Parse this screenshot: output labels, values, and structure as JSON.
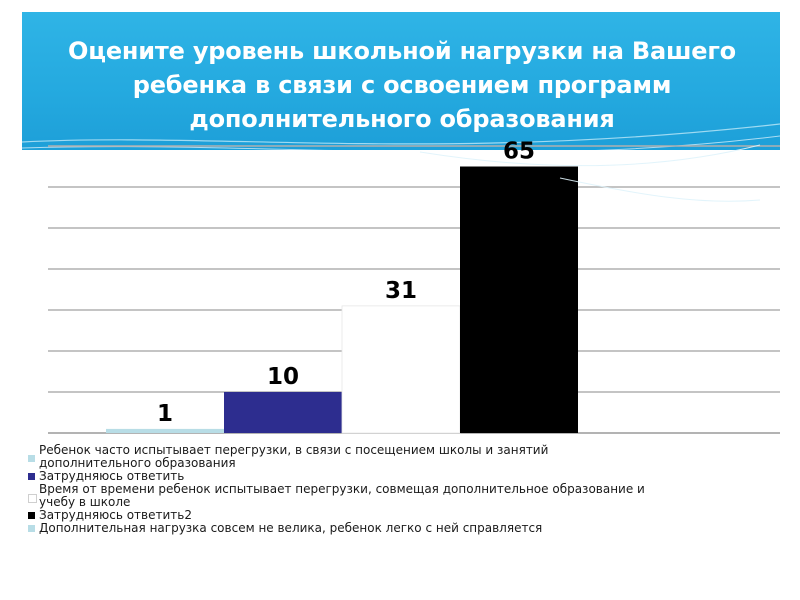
{
  "header": {
    "title_lines": [
      "Оцените уровень школьной нагрузки на Вашего",
      "ребенка в связи с освоением программ",
      "дополнительного образования"
    ],
    "background": "#26abe0"
  },
  "chart_data": {
    "type": "bar",
    "title": "Оцените уровень школьной нагрузки на Вашего ребенка в связи с освоением программ дополнительного образования",
    "ylim": [
      0,
      70
    ],
    "grid": true,
    "legend_position": "bottom",
    "series": [
      {
        "name": "Ребенок часто испытывает перегрузки, в связи с посещением школы и занятий дополнительного образования",
        "value": 1,
        "label": "1",
        "color": "#b8dde6"
      },
      {
        "name": "Затрудняюсь ответить",
        "value": 10,
        "label": "10",
        "color": "#2d2d8f"
      },
      {
        "name": "Время от времени ребенок испытывает перегрузки, совмещая дополнительное образование и учебу в школе",
        "value": 31,
        "label": "31",
        "color": "#ffffff"
      },
      {
        "name": "Затрудняюсь ответить2",
        "value": 65,
        "label": "65",
        "color": "#000000"
      },
      {
        "name": "Дополнительная нагрузка совсем не велика, ребенок легко с ней справляется",
        "value": null,
        "label": "",
        "color": "#b8dde6"
      }
    ]
  },
  "legend": {
    "items": [
      {
        "lines": [
          "Ребенок часто испытывает перегрузки, в связи с посещением школы и занятий",
          "дополнительного образования"
        ]
      },
      {
        "lines": [
          "Затрудняюсь ответить"
        ]
      },
      {
        "lines": [
          "Время от времени ребенок испытывает перегрузки, совмещая дополнительное образование и",
          "учебу в школе"
        ]
      },
      {
        "lines": [
          "Затрудняюсь ответить2"
        ]
      },
      {
        "lines": [
          "Дополнительная нагрузка совсем не велика, ребенок легко с ней справляется"
        ]
      }
    ]
  }
}
